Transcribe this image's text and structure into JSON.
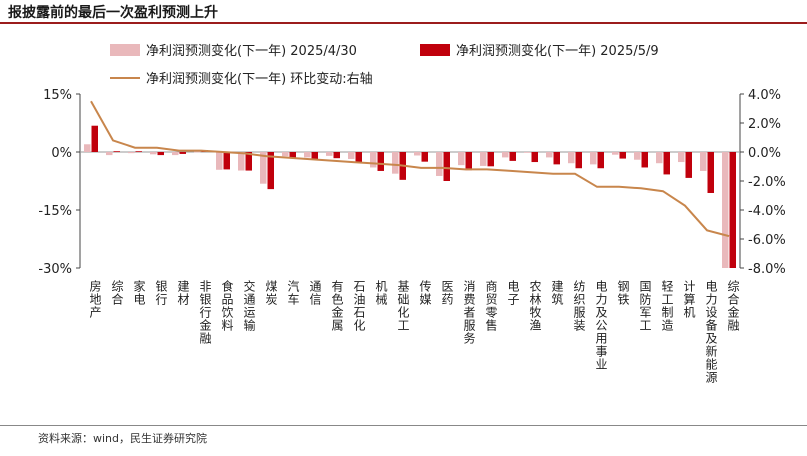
{
  "header": {
    "title": "报披露前的最后一次盈利预测上升",
    "source": "资料来源：wind，民生证券研究院"
  },
  "chart_data": {
    "type": "bar",
    "categories": [
      "房地产",
      "综合",
      "家电",
      "银行",
      "建材",
      "非银行金融",
      "食品饮料",
      "交通运输",
      "煤炭",
      "汽车",
      "通信",
      "有色金属",
      "石油石化",
      "机械",
      "基础化工",
      "传媒",
      "医药",
      "消费者服务",
      "商贸零售",
      "电子",
      "农林牧渔",
      "建筑",
      "纺织服装",
      "电力及公用事业",
      "钢铁",
      "国防军工",
      "轻工制造",
      "计算机",
      "电力设备及新能源",
      "综合金融"
    ],
    "series": [
      {
        "name": "净利润预测变化(下一年) 2025/4/30",
        "axis": "left",
        "color": "#e9b8bb",
        "values": [
          2.0,
          -0.8,
          -0.3,
          -0.6,
          -0.8,
          0.1,
          -4.6,
          -4.8,
          -8.2,
          -1.1,
          -1.4,
          -1.0,
          -1.8,
          -4.0,
          -5.6,
          -0.9,
          -6.2,
          -3.4,
          -3.6,
          -1.4,
          -0.2,
          -1.4,
          -2.9,
          -3.2,
          -0.7,
          -2.0,
          -2.9,
          -2.6,
          -4.9,
          -30.0
        ]
      },
      {
        "name": "净利润预测变化(下一年) 2025/5/9",
        "axis": "left",
        "color": "#c0000c",
        "values": [
          6.8,
          0.2,
          0.2,
          -0.8,
          -0.5,
          0.5,
          -4.5,
          -4.8,
          -9.6,
          -1.5,
          -1.9,
          -1.6,
          -2.6,
          -4.9,
          -7.2,
          -2.5,
          -7.5,
          -4.7,
          -3.7,
          -2.3,
          -2.6,
          -3.2,
          -4.2,
          -4.2,
          -1.7,
          -4.0,
          -5.8,
          -6.7,
          -10.6,
          -30.0
        ]
      },
      {
        "name": "净利润预测变化(下一年) 环比变动:右轴",
        "axis": "right",
        "type": "line",
        "color": "#c8864c",
        "values": [
          3.5,
          0.8,
          0.3,
          0.3,
          0.1,
          0.1,
          0.0,
          -0.1,
          -0.3,
          -0.4,
          -0.5,
          -0.6,
          -0.7,
          -0.8,
          -0.9,
          -1.1,
          -1.1,
          -1.2,
          -1.2,
          -1.3,
          -1.4,
          -1.5,
          -1.5,
          -2.4,
          -2.4,
          -2.5,
          -2.7,
          -3.7,
          -5.4,
          -5.8
        ]
      }
    ],
    "y_left": {
      "min": -30,
      "max": 15,
      "ticks": [
        15,
        0,
        -15,
        -30
      ],
      "tick_labels": [
        "15%",
        "0%",
        "-15%",
        "-30%"
      ]
    },
    "y_right": {
      "min": -8,
      "max": 4,
      "ticks": [
        4,
        2,
        0,
        -2,
        -4,
        -6,
        -8
      ],
      "tick_labels": [
        "4.0%",
        "2.0%",
        "0.0%",
        "-2.0%",
        "-4.0%",
        "-6.0%",
        "-8.0%"
      ]
    },
    "legend_placement": "top",
    "grid": false
  }
}
